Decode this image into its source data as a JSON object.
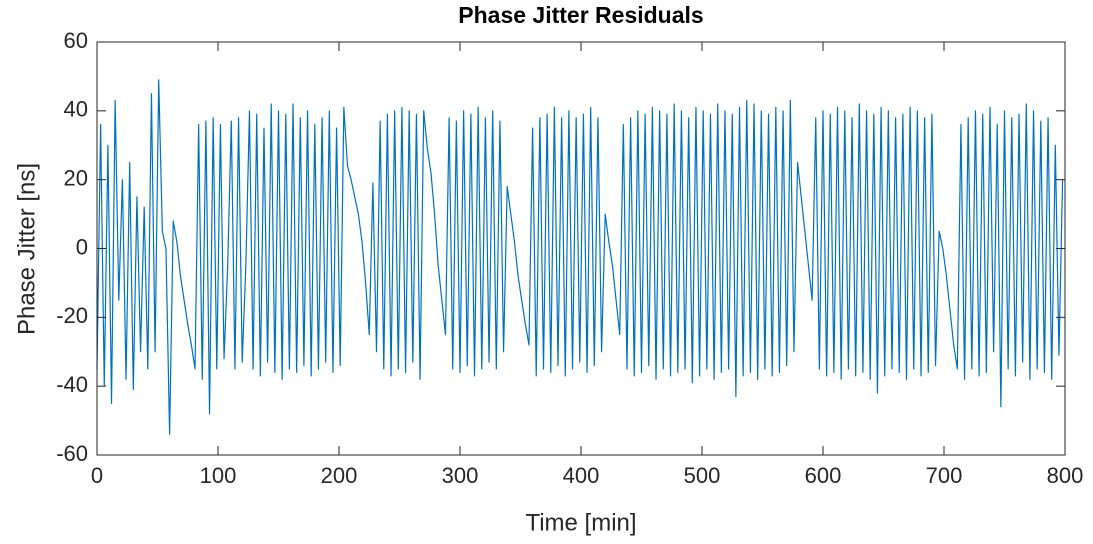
{
  "chart_data": {
    "type": "line",
    "title": "Phase Jitter Residuals",
    "xlabel": "Time [min]",
    "ylabel": "Phase Jitter [ns]",
    "xlim": [
      0,
      800
    ],
    "xticks": [
      0,
      100,
      200,
      300,
      400,
      500,
      600,
      700,
      800
    ],
    "ylim": [
      -60,
      60
    ],
    "yticks": [
      -60,
      -40,
      -20,
      0,
      20,
      40,
      60
    ],
    "grid": false,
    "x": [
      0,
      3,
      6,
      9,
      12,
      15,
      18,
      21,
      24,
      27,
      30,
      33,
      36,
      39,
      42,
      45,
      48,
      51,
      54,
      57,
      60,
      63,
      66,
      69,
      72,
      75,
      78,
      81,
      84,
      87,
      90,
      93,
      96,
      99,
      102,
      105,
      108,
      111,
      114,
      117,
      120,
      123,
      126,
      129,
      132,
      135,
      138,
      141,
      144,
      147,
      150,
      153,
      156,
      159,
      162,
      165,
      168,
      171,
      174,
      177,
      180,
      183,
      186,
      189,
      192,
      195,
      198,
      201,
      204,
      207,
      210,
      213,
      216,
      219,
      222,
      225,
      228,
      231,
      234,
      237,
      240,
      243,
      246,
      249,
      252,
      255,
      258,
      261,
      264,
      267,
      270,
      273,
      276,
      279,
      282,
      285,
      288,
      291,
      294,
      297,
      300,
      303,
      306,
      309,
      312,
      315,
      318,
      321,
      324,
      327,
      330,
      333,
      336,
      339,
      342,
      345,
      348,
      351,
      354,
      357,
      360,
      363,
      366,
      369,
      372,
      375,
      378,
      381,
      384,
      387,
      390,
      393,
      396,
      399,
      402,
      405,
      408,
      411,
      414,
      417,
      420,
      423,
      426,
      429,
      432,
      435,
      438,
      441,
      444,
      447,
      450,
      453,
      456,
      459,
      462,
      465,
      468,
      471,
      474,
      477,
      480,
      483,
      486,
      489,
      492,
      495,
      498,
      501,
      504,
      507,
      510,
      513,
      516,
      519,
      522,
      525,
      528,
      531,
      534,
      537,
      540,
      543,
      546,
      549,
      552,
      555,
      558,
      561,
      564,
      567,
      570,
      573,
      576,
      579,
      582,
      585,
      588,
      591,
      594,
      597,
      600,
      603,
      606,
      609,
      612,
      615,
      618,
      621,
      624,
      627,
      630,
      633,
      636,
      639,
      642,
      645,
      648,
      651,
      654,
      657,
      660,
      663,
      666,
      669,
      672,
      675,
      678,
      681,
      684,
      687,
      690,
      693,
      696,
      699,
      702,
      705,
      708,
      711,
      714,
      717,
      720,
      723,
      726,
      729,
      732,
      735,
      738,
      741,
      744,
      747,
      750,
      753,
      756,
      759,
      762,
      765,
      768,
      771,
      774,
      777,
      780,
      783,
      786,
      789,
      792,
      795,
      798
    ],
    "series": [
      {
        "name": "Phase Jitter",
        "color": "#0072bd",
        "values": [
          -35,
          36,
          -40,
          30,
          -45,
          43,
          -15,
          20,
          -38,
          25,
          -41,
          15,
          -30,
          12,
          -35,
          45,
          -30,
          49,
          5,
          0,
          -54,
          8,
          2,
          -8,
          -15,
          -22,
          -28,
          -35,
          36,
          -38,
          37,
          -48,
          38,
          -35,
          36,
          -32,
          -5,
          37,
          -35,
          38,
          -33,
          -5,
          40,
          -35,
          39,
          -37,
          35,
          -33,
          42,
          -36,
          40,
          -38,
          39,
          -35,
          42,
          -36,
          38,
          -34,
          40,
          -37,
          36,
          -35,
          38,
          -33,
          40,
          -36,
          35,
          -34,
          41,
          24,
          20,
          15,
          10,
          2,
          -10,
          -25,
          19,
          -30,
          37,
          -35,
          39,
          -37,
          40,
          -35,
          41,
          -36,
          40,
          -33,
          39,
          -38,
          40,
          29,
          22,
          10,
          -5,
          -15,
          -25,
          38,
          -35,
          37,
          -36,
          40,
          -34,
          39,
          -37,
          41,
          -35,
          38,
          -33,
          40,
          -35,
          37,
          -30,
          18,
          10,
          2,
          -8,
          -15,
          -22,
          -28,
          35,
          -37,
          38,
          -35,
          39,
          -36,
          41,
          -34,
          38,
          -37,
          40,
          -35,
          38,
          -33,
          39,
          -36,
          41,
          -34,
          38,
          -30,
          10,
          2,
          -5,
          -15,
          -25,
          36,
          -35,
          38,
          -37,
          40,
          -36,
          39,
          -34,
          41,
          -38,
          40,
          -35,
          39,
          -37,
          42,
          -36,
          40,
          -35,
          38,
          -39,
          41,
          -37,
          40,
          -35,
          39,
          -38,
          42,
          -36,
          40,
          -35,
          39,
          -43,
          41,
          -37,
          43,
          -36,
          42,
          -38,
          40,
          -35,
          39,
          -37,
          41,
          -36,
          40,
          -34,
          43,
          -30,
          25,
          15,
          5,
          -5,
          -15,
          38,
          -35,
          40,
          -37,
          39,
          -36,
          41,
          -38,
          40,
          -35,
          38,
          -37,
          42,
          -36,
          40,
          -38,
          39,
          -42,
          41,
          -37,
          40,
          -35,
          38,
          -36,
          39,
          -38,
          41,
          -35,
          40,
          -37,
          38,
          -36,
          39,
          -34,
          5,
          0,
          -8,
          -18,
          -28,
          -35,
          36,
          -38,
          38,
          -35,
          40,
          -37,
          39,
          -36,
          41,
          -30,
          36,
          -46,
          40,
          -35,
          38,
          -37,
          39,
          -33,
          42,
          -38,
          40,
          -35,
          37,
          -36,
          38,
          -38,
          30,
          -31,
          20
        ]
      }
    ]
  }
}
